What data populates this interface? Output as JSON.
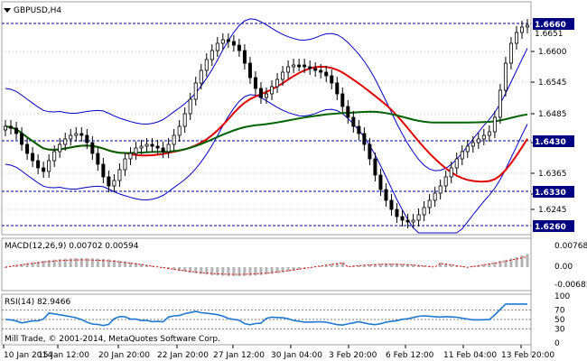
{
  "chart_header": {
    "symbol_timeframe": "GBPUSD,H4",
    "dropdown_icon": "triangle-down-icon"
  },
  "price_axis": {
    "labels": [
      "1.6600",
      "1.6545",
      "1.6485",
      "1.6430",
      "1.6365",
      "1.6330",
      "1.6245"
    ],
    "bid_tag": "1.6660",
    "bid_tag_sub": "1.6651",
    "level_tags": [
      "1.6430",
      "1.6330",
      "1.6260"
    ]
  },
  "macd": {
    "title": "MACD(12,26,9) 0.00702 0.00594",
    "scale": [
      "0.00768",
      "0.00",
      "-0.00685"
    ]
  },
  "rsi": {
    "title": "RSI(14) 82.9466",
    "scale": [
      "100",
      "70",
      "50",
      "30",
      "0"
    ],
    "value": 82.9466
  },
  "time_axis": {
    "labels": [
      "10 Jan 2014",
      "15 Jan 12:00",
      "20 Jan 20:00",
      "22 Jan 20:00",
      "27 Jan 12:00",
      "30 Jan 04:00",
      "3 Feb 20:00",
      "6 Feb 12:00",
      "11 Feb 04:00",
      "13 Feb 20:00"
    ]
  },
  "footer": {
    "copyright": "Mill Trade, © 2001-2014, MetaQuotes Software Corp."
  },
  "colors": {
    "background": "#ffffff",
    "grid": "#c0c0c0",
    "candle": "#000000",
    "bands": "#0000c8",
    "red_ma": "#e00000",
    "green_ma": "#006400",
    "level_line": "#0000a0",
    "tag_bg": "#000080",
    "macd_hist": "#b4b4b4",
    "macd_signal": "#e00000",
    "rsi_line": "#1e78d2"
  }
}
